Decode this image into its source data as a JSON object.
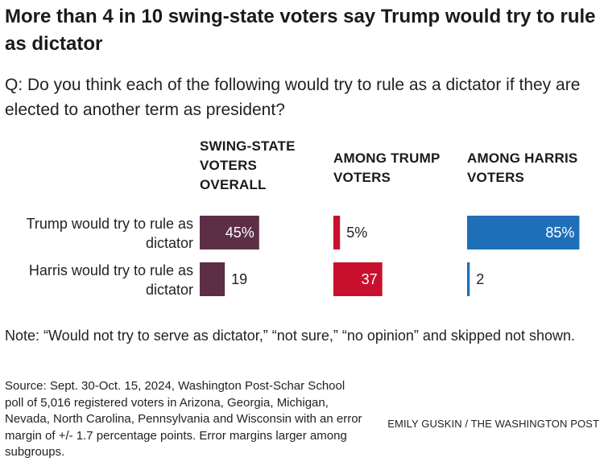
{
  "header": {
    "title": "More than 4 in 10 swing-state voters say Trump would try to rule as dictator",
    "question": "Q: Do you think each of the following would try to rule as a dictator if they are elected to another term as president?"
  },
  "chart_data": {
    "type": "bar",
    "categories": [
      "Trump would try to rule as dictator",
      "Harris would try to rule as dictator"
    ],
    "series": [
      {
        "name": "SWING-STATE VOTERS OVERALL",
        "values": [
          45,
          19
        ],
        "labels": [
          "45%",
          "19"
        ],
        "color": "#5c2f47"
      },
      {
        "name": "AMONG TRUMP VOTERS",
        "values": [
          5,
          37
        ],
        "labels": [
          "5%",
          "37"
        ],
        "color": "#c8102e"
      },
      {
        "name": "AMONG HARRIS VOTERS",
        "values": [
          85,
          2
        ],
        "labels": [
          "85%",
          "2"
        ],
        "color": "#1f6fb8"
      }
    ]
  },
  "footer": {
    "note": "Note: “Would not try to serve as dictator,” “not sure,” “no opinion” and skipped not shown.",
    "source": "Source: Sept. 30-Oct. 15, 2024, Washington Post-Schar School poll of 5,016 registered voters in Arizona, Georgia, Michigan, Nevada, North Carolina, Pennsylvania and Wisconsin with an error margin of +/- 1.7 percentage points. Error margins larger among subgroups.",
    "credit": "EMILY GUSKIN / THE WASHINGTON POST"
  }
}
